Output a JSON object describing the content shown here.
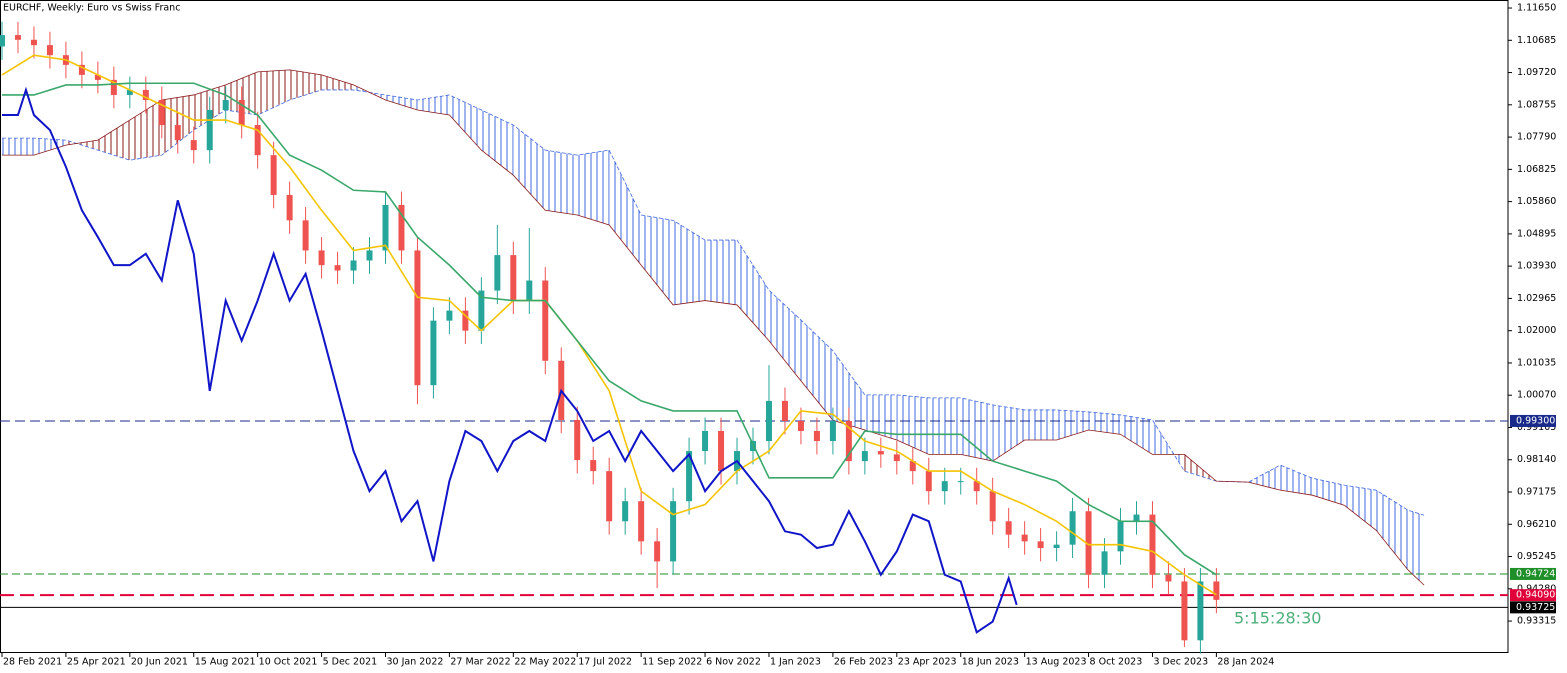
{
  "chart_data": {
    "type": "candlestick",
    "title": "EURCHF, Weekly:  Euro vs Swiss Franc",
    "countdown": "5:15:28:30",
    "up_color": "#26a69a",
    "down_color": "#ef5350",
    "xlim": [
      -0.25,
      188.5
    ],
    "ylim": [
      0.9236,
      1.1189
    ],
    "xticks": [
      {
        "value": 0,
        "label": "28 Feb 2021"
      },
      {
        "value": 8,
        "label": "25 Apr 2021"
      },
      {
        "value": 16,
        "label": "20 Jun 2021"
      },
      {
        "value": 24,
        "label": "15 Aug 2021"
      },
      {
        "value": 32,
        "label": "10 Oct 2021"
      },
      {
        "value": 40,
        "label": "5 Dec 2021"
      },
      {
        "value": 48,
        "label": "30 Jan 2022"
      },
      {
        "value": 56,
        "label": "27 Mar 2022"
      },
      {
        "value": 64,
        "label": "22 May 2022"
      },
      {
        "value": 72,
        "label": "17 Jul 2022"
      },
      {
        "value": 80,
        "label": "11 Sep 2022"
      },
      {
        "value": 88,
        "label": "6 Nov 2022"
      },
      {
        "value": 96,
        "label": "1 Jan 2023"
      },
      {
        "value": 104,
        "label": "26 Feb 2023"
      },
      {
        "value": 112,
        "label": "23 Apr 2023"
      },
      {
        "value": 120,
        "label": "18 Jun 2023"
      },
      {
        "value": 128,
        "label": "13 Aug 2023"
      },
      {
        "value": 136,
        "label": "8 Oct 2023"
      },
      {
        "value": 144,
        "label": "3 Dec 2023"
      },
      {
        "value": 152,
        "label": "28 Jan 2024"
      }
    ],
    "yticks": [
      {
        "value": 1.1165,
        "label": "1.11650"
      },
      {
        "value": 1.10685,
        "label": "1.10685"
      },
      {
        "value": 1.0972,
        "label": "1.09720"
      },
      {
        "value": 1.08755,
        "label": "1.08755"
      },
      {
        "value": 1.0779,
        "label": "1.07790"
      },
      {
        "value": 1.06825,
        "label": "1.06825"
      },
      {
        "value": 1.0586,
        "label": "1.05860"
      },
      {
        "value": 1.04895,
        "label": "1.04895"
      },
      {
        "value": 1.0393,
        "label": "1.03930"
      },
      {
        "value": 1.02965,
        "label": "1.02965"
      },
      {
        "value": 1.02,
        "label": "1.02000"
      },
      {
        "value": 1.01035,
        "label": "1.01035"
      },
      {
        "value": 1.0007,
        "label": "1.00070"
      },
      {
        "value": 0.99105,
        "label": "0.99105"
      },
      {
        "value": 0.9814,
        "label": "0.98140"
      },
      {
        "value": 0.97175,
        "label": "0.97175"
      },
      {
        "value": 0.9621,
        "label": "0.96210"
      },
      {
        "value": 0.95245,
        "label": "0.95245"
      },
      {
        "value": 0.9428,
        "label": "0.94280"
      },
      {
        "value": 0.93315,
        "label": "0.93315"
      }
    ],
    "x": [
      0,
      2,
      4,
      6,
      8,
      10,
      12,
      14,
      16,
      18,
      20,
      22,
      24,
      26,
      28,
      30,
      32,
      34,
      36,
      38,
      40,
      42,
      44,
      46,
      48,
      50,
      52,
      54,
      56,
      58,
      60,
      62,
      64,
      66,
      68,
      70,
      72,
      74,
      76,
      78,
      80,
      82,
      84,
      86,
      88,
      90,
      92,
      94,
      96,
      98,
      100,
      102,
      104,
      106,
      108,
      110,
      112,
      114,
      116,
      118,
      120,
      122,
      124,
      126,
      128,
      130,
      132,
      134,
      136,
      138,
      140,
      142,
      144,
      146,
      148,
      150,
      152
    ],
    "candles": [
      [
        1.105,
        1.1124,
        1.101,
        1.1084
      ],
      [
        1.1084,
        1.1124,
        1.103,
        1.107
      ],
      [
        1.107,
        1.111,
        1.1014,
        1.1054
      ],
      [
        1.1054,
        1.1094,
        1.0984,
        1.1024
      ],
      [
        1.1024,
        1.1064,
        1.0955,
        1.0995
      ],
      [
        1.0995,
        1.1035,
        1.0925,
        1.0965
      ],
      [
        1.0965,
        1.1005,
        1.091,
        1.095
      ],
      [
        1.095,
        1.099,
        1.0865,
        1.0905
      ],
      [
        1.0905,
        1.096,
        1.0865,
        1.092
      ],
      [
        1.092,
        1.096,
        1.085,
        1.089
      ],
      [
        1.089,
        1.093,
        1.0775,
        1.0815
      ],
      [
        1.0815,
        1.0855,
        1.073,
        1.077
      ],
      [
        1.077,
        1.081,
        1.07,
        1.074
      ],
      [
        1.074,
        1.09,
        1.07,
        1.086
      ],
      [
        1.086,
        1.093,
        1.082,
        1.089
      ],
      [
        1.089,
        1.093,
        1.0775,
        1.0815
      ],
      [
        1.0815,
        1.0855,
        1.0685,
        1.0725
      ],
      [
        1.0725,
        1.0765,
        1.0566,
        1.0606
      ],
      [
        1.0606,
        1.0646,
        1.049,
        1.053
      ],
      [
        1.053,
        1.057,
        1.04,
        1.044
      ],
      [
        1.044,
        1.048,
        1.0356,
        1.0396
      ],
      [
        1.0396,
        1.0436,
        1.034,
        1.038
      ],
      [
        1.038,
        1.045,
        1.034,
        1.041
      ],
      [
        1.041,
        1.048,
        1.037,
        1.044
      ],
      [
        1.044,
        1.0616,
        1.04,
        1.0576
      ],
      [
        1.0576,
        1.0616,
        1.04,
        1.044
      ],
      [
        1.044,
        1.048,
        0.998,
        1.0037
      ],
      [
        1.0037,
        1.027,
        0.9997,
        1.023
      ],
      [
        1.023,
        1.03,
        1.019,
        1.026
      ],
      [
        1.026,
        1.03,
        1.016,
        1.02
      ],
      [
        1.02,
        1.036,
        1.016,
        1.032
      ],
      [
        1.032,
        1.0516,
        1.028,
        1.0426
      ],
      [
        1.0426,
        1.0466,
        1.025,
        1.029
      ],
      [
        1.029,
        1.0507,
        1.025,
        1.035
      ],
      [
        1.035,
        1.039,
        1.007,
        1.011
      ],
      [
        1.011,
        1.015,
        0.9893,
        0.9933
      ],
      [
        0.9933,
        0.9973,
        0.9773,
        0.9813
      ],
      [
        0.9813,
        0.9853,
        0.974,
        0.978
      ],
      [
        0.978,
        0.982,
        0.959,
        0.963
      ],
      [
        0.963,
        0.973,
        0.959,
        0.969
      ],
      [
        0.969,
        0.973,
        0.953,
        0.957
      ],
      [
        0.957,
        0.961,
        0.943,
        0.951
      ],
      [
        0.951,
        0.973,
        0.947,
        0.969
      ],
      [
        0.969,
        0.988,
        0.965,
        0.984
      ],
      [
        0.984,
        0.994,
        0.98,
        0.99
      ],
      [
        0.99,
        0.994,
        0.974,
        0.978
      ],
      [
        0.978,
        0.988,
        0.974,
        0.984
      ],
      [
        0.984,
        0.991,
        0.98,
        0.987
      ],
      [
        0.987,
        1.0097,
        0.983,
        0.999
      ],
      [
        0.999,
        1.003,
        0.989,
        0.993
      ],
      [
        0.993,
        0.997,
        0.986,
        0.99
      ],
      [
        0.99,
        0.994,
        0.983,
        0.987
      ],
      [
        0.987,
        0.997,
        0.983,
        0.993
      ],
      [
        0.993,
        0.997,
        0.977,
        0.981
      ],
      [
        0.981,
        0.988,
        0.977,
        0.984
      ],
      [
        0.984,
        0.988,
        0.979,
        0.983
      ],
      [
        0.983,
        0.987,
        0.977,
        0.981
      ],
      [
        0.981,
        0.985,
        0.974,
        0.978
      ],
      [
        0.978,
        0.982,
        0.968,
        0.972
      ],
      [
        0.972,
        0.979,
        0.968,
        0.975
      ],
      [
        0.975,
        0.979,
        0.971,
        0.975
      ],
      [
        0.975,
        0.979,
        0.968,
        0.972
      ],
      [
        0.972,
        0.976,
        0.959,
        0.963
      ],
      [
        0.963,
        0.967,
        0.955,
        0.959
      ],
      [
        0.959,
        0.963,
        0.953,
        0.957
      ],
      [
        0.957,
        0.961,
        0.951,
        0.955
      ],
      [
        0.955,
        0.96,
        0.951,
        0.956
      ],
      [
        0.956,
        0.97,
        0.952,
        0.966
      ],
      [
        0.966,
        0.97,
        0.943,
        0.947
      ],
      [
        0.947,
        0.958,
        0.943,
        0.954
      ],
      [
        0.954,
        0.967,
        0.95,
        0.963
      ],
      [
        0.963,
        0.969,
        0.959,
        0.965
      ],
      [
        0.965,
        0.969,
        0.943,
        0.947
      ],
      [
        0.947,
        0.951,
        0.941,
        0.945
      ],
      [
        0.945,
        0.949,
        0.9254,
        0.9274
      ],
      [
        0.9274,
        0.949,
        0.9234,
        0.945
      ],
      [
        0.945,
        0.949,
        0.9355,
        0.9395
      ]
    ],
    "series": [
      {
        "color": "#f5c400",
        "x": [
          0,
          4,
          8,
          12,
          16,
          20,
          24,
          28,
          32,
          36,
          40,
          44,
          48,
          52,
          56,
          60,
          64,
          68,
          72,
          76,
          80,
          84,
          88,
          92,
          96,
          100,
          104,
          108,
          112,
          116,
          120,
          124,
          128,
          132,
          136,
          140,
          144,
          148,
          152
        ],
        "values": [
          1.0965,
          1.1024,
          1.101,
          1.0965,
          1.092,
          1.0875,
          1.083,
          1.083,
          1.08,
          1.069,
          1.056,
          1.044,
          1.0455,
          1.03,
          1.029,
          1.02,
          1.029,
          1.029,
          1.017,
          1.002,
          0.972,
          0.965,
          0.968,
          0.978,
          0.984,
          0.996,
          0.995,
          0.987,
          0.984,
          0.978,
          0.978,
          0.972,
          0.968,
          0.963,
          0.956,
          0.956,
          0.954,
          0.947,
          0.941
        ]
      },
      {
        "color": "#3aa86b",
        "x": [
          0,
          4,
          8,
          12,
          16,
          20,
          24,
          28,
          32,
          36,
          40,
          44,
          48,
          52,
          56,
          60,
          64,
          68,
          72,
          76,
          80,
          84,
          88,
          92,
          96,
          100,
          104,
          108,
          112,
          116,
          120,
          124,
          128,
          132,
          136,
          140,
          144,
          148,
          152
        ],
        "values": [
          1.0905,
          1.0905,
          1.0935,
          1.0935,
          1.094,
          1.094,
          1.094,
          1.0905,
          1.0845,
          1.0725,
          1.068,
          1.062,
          1.0615,
          1.048,
          1.0396,
          1.03,
          1.029,
          1.029,
          1.017,
          1.005,
          0.999,
          0.996,
          0.996,
          0.996,
          0.976,
          0.976,
          0.976,
          0.99,
          0.989,
          0.989,
          0.989,
          0.981,
          0.978,
          0.975,
          0.968,
          0.963,
          0.963,
          0.953,
          0.947
        ]
      },
      {
        "color": "#1015c8",
        "x": [
          0,
          2,
          3,
          4,
          6,
          8,
          10,
          12,
          14,
          16,
          18,
          20,
          22,
          24,
          26,
          28,
          30,
          32,
          34,
          36,
          38,
          40,
          42,
          44,
          46,
          48,
          50,
          52,
          54,
          56,
          58,
          60,
          62,
          64,
          66,
          68,
          70,
          72,
          74,
          76,
          78,
          80,
          82,
          84,
          86,
          88,
          90,
          92,
          94,
          96,
          98,
          100,
          102,
          104,
          106,
          108,
          110,
          112,
          114,
          116,
          118,
          120,
          122,
          124,
          126,
          127
        ],
        "values": [
          1.0845,
          1.0845,
          1.092,
          1.0845,
          1.08,
          1.069,
          1.056,
          1.048,
          1.0396,
          1.0396,
          1.043,
          1.035,
          1.059,
          1.043,
          1.002,
          1.029,
          1.017,
          1.029,
          1.043,
          1.029,
          1.037,
          1.02,
          1.002,
          0.984,
          0.972,
          0.978,
          0.963,
          0.969,
          0.951,
          0.975,
          0.99,
          0.987,
          0.978,
          0.987,
          0.99,
          0.987,
          1.002,
          0.996,
          0.987,
          0.99,
          0.981,
          0.99,
          0.984,
          0.978,
          0.983,
          0.972,
          0.978,
          0.981,
          0.975,
          0.969,
          0.96,
          0.959,
          0.955,
          0.956,
          0.966,
          0.957,
          0.947,
          0.954,
          0.965,
          0.963,
          0.947,
          0.945,
          0.9298,
          0.933,
          0.946,
          0.938
        ]
      }
    ],
    "cloud": {
      "up_color": "#4169e1",
      "down_color": "#8b1a1a",
      "x": [
        0,
        4,
        8,
        12,
        16,
        20,
        24,
        28,
        32,
        36,
        40,
        44,
        48,
        52,
        56,
        60,
        64,
        68,
        72,
        76,
        80,
        84,
        88,
        92,
        96,
        100,
        104,
        108,
        112,
        116,
        120,
        124,
        128,
        132,
        136,
        140,
        144,
        148,
        152,
        156,
        160,
        164,
        168,
        172,
        176,
        178
      ],
      "span_a": [
        1.0776,
        1.0776,
        1.077,
        1.074,
        1.071,
        1.0725,
        1.08,
        1.086,
        1.0845,
        1.089,
        1.092,
        1.092,
        1.0905,
        1.089,
        1.0905,
        1.086,
        1.0815,
        1.074,
        1.0725,
        1.074,
        1.0546,
        1.053,
        1.0471,
        1.0471,
        1.0321,
        1.0232,
        1.014,
        1.0008,
        1.0008,
        0.9999,
        0.9999,
        0.9978,
        0.9963,
        0.9963,
        0.9957,
        0.9948,
        0.9933,
        0.978,
        0.975,
        0.9747,
        0.9798,
        0.9759,
        0.9738,
        0.9723,
        0.9663,
        0.9648
      ],
      "span_b": [
        1.0725,
        1.0725,
        1.0755,
        1.077,
        1.083,
        1.089,
        1.0905,
        1.0935,
        1.0974,
        1.098,
        1.0965,
        1.0935,
        1.089,
        1.086,
        1.0845,
        1.074,
        1.0665,
        1.056,
        1.0546,
        1.0516,
        1.0396,
        1.0277,
        1.029,
        1.0277,
        1.017,
        1.005,
        0.9932,
        0.9903,
        0.9873,
        0.983,
        0.983,
        0.981,
        0.9873,
        0.9873,
        0.9903,
        0.989,
        0.983,
        0.983,
        0.975,
        0.9747,
        0.9723,
        0.9708,
        0.9678,
        0.9603,
        0.9484,
        0.9439
      ]
    },
    "levels": [
      {
        "value": 0.993,
        "label": "0.99300",
        "color": "#1a2a8a",
        "dash": "10,5"
      },
      {
        "value": 0.94724,
        "label": "0.94724",
        "color": "#1f8f2a",
        "dash": "8,4"
      },
      {
        "value": 0.9409,
        "label": "0.94090",
        "color": "#e0003a",
        "dash": "14,6"
      },
      {
        "value": 0.93725,
        "label": "0.93725",
        "color": "#000000",
        "dash": "none"
      }
    ]
  }
}
